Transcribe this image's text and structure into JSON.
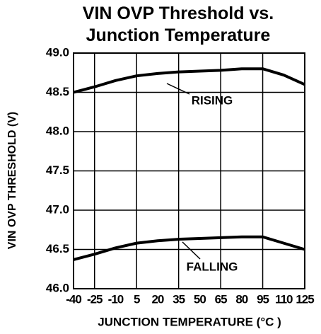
{
  "chart_data": {
    "type": "line",
    "title": "VIN OVP Threshold vs. Junction Temperature",
    "x_label": "JUNCTION TEMPERATURE (°C )",
    "y_label": "VIN OVP THRESHOLD (V)",
    "x": [
      -40,
      -25,
      -10,
      5,
      20,
      35,
      50,
      65,
      80,
      95,
      110,
      125
    ],
    "series": [
      {
        "name": "RISING",
        "color": "#000000",
        "values": [
          48.5,
          48.57,
          48.65,
          48.71,
          48.74,
          48.76,
          48.77,
          48.78,
          48.8,
          48.8,
          48.72,
          48.6
        ]
      },
      {
        "name": "FALLING",
        "color": "#000000",
        "values": [
          46.37,
          46.44,
          46.52,
          46.58,
          46.61,
          46.63,
          46.64,
          46.65,
          46.66,
          46.66,
          46.58,
          46.5
        ]
      }
    ],
    "xlim": [
      -40,
      125
    ],
    "xticks": [
      -40,
      -25,
      -10,
      5,
      20,
      35,
      50,
      65,
      80,
      95,
      110,
      125
    ],
    "ylim": [
      46,
      49
    ],
    "yticks": [
      {
        "value": 46,
        "label": "46.0"
      },
      46.5,
      {
        "value": 47,
        "label": "47.0"
      },
      47.5,
      {
        "value": 48,
        "label": "48.0"
      },
      48.5,
      {
        "value": 49,
        "label": "49.0"
      }
    ],
    "grid": true
  }
}
